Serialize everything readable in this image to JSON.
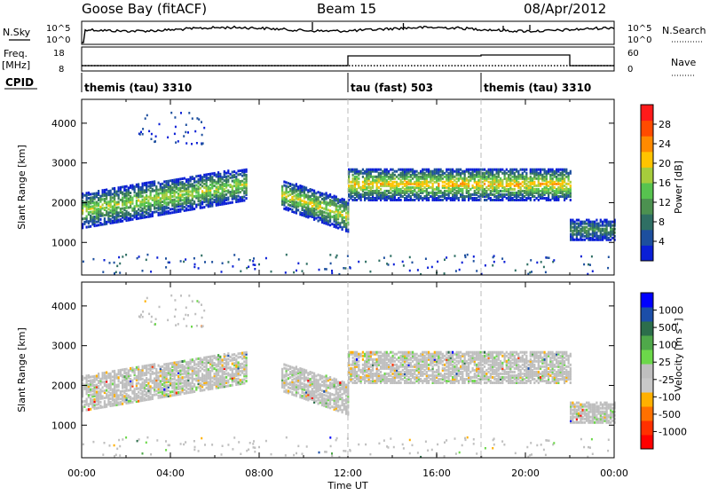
{
  "header": {
    "station": "Goose Bay (fitACF)",
    "beam": "Beam 15",
    "date": "08/Apr/2012"
  },
  "top_labels": {
    "nsky": "N.Sky",
    "freq": "Freq.",
    "mhz": "[MHz]",
    "cpid": "CPID",
    "nsearch": "N.Search",
    "nave": "Nave"
  },
  "noise_ticks": {
    "left_hi": "10^5",
    "left_lo": "10^0",
    "right_hi": "10^5",
    "right_lo": "10^0"
  },
  "freq_ticks": {
    "left_hi": "18",
    "left_lo": "8",
    "right_hi": "60",
    "right_lo": "0"
  },
  "cpid_segments": [
    {
      "label": "themis (tau) 3310",
      "start": 0,
      "end": 12
    },
    {
      "label": "tau (fast) 503",
      "start": 12,
      "end": 18
    },
    {
      "label": "themis (tau) 3310",
      "start": 18,
      "end": 24
    }
  ],
  "colors": {
    "trace": "#000000",
    "dashed_line": "#bbbbbb",
    "ground_scatter": "#bfbfbf",
    "power_scale": [
      "#0a1fd6",
      "#1d4f9e",
      "#2f6f64",
      "#4c9150",
      "#57c34f",
      "#a6cc3c",
      "#ffc400",
      "#ff8a00",
      "#ff4b00",
      "#ff1a1a"
    ],
    "velocity_scale": [
      "#0000ff",
      "#1b4ea8",
      "#2c6e4b",
      "#4fa84a",
      "#6cd84a",
      "#bfbfbf",
      "#c8c8c8",
      "#ffb000",
      "#ff7000",
      "#ff3000",
      "#ff0000"
    ]
  },
  "chart_data": [
    {
      "type": "heatmap",
      "title": "Power",
      "ylabel": "Slant Range [km]",
      "xlabel": "Time UT",
      "xlim": [
        0,
        24
      ],
      "ylim": [
        180,
        4600
      ],
      "x_tick_labels": [
        "00:00",
        "04:00",
        "08:00",
        "12:00",
        "16:00",
        "20:00",
        "00:00"
      ],
      "y_ticks": [
        1000,
        2000,
        3000,
        4000
      ],
      "colorbar": {
        "label": "Power [dB]",
        "ticks": [
          "4",
          "8",
          "12",
          "16",
          "20",
          "24",
          "28"
        ],
        "range": [
          0,
          30
        ]
      },
      "regions": [
        {
          "t_start": 0.0,
          "t_end": 7.4,
          "range_low": 1400,
          "range_high": 3000,
          "trend": "rising",
          "peak_power": 16
        },
        {
          "t_start": 9.0,
          "t_end": 12.0,
          "range_low": 1300,
          "range_high": 2600,
          "trend": "falling",
          "peak_power": 18
        },
        {
          "t_start": 12.0,
          "t_end": 22.0,
          "range_low": 2100,
          "range_high": 2900,
          "trend": "flat",
          "peak_power": 20
        },
        {
          "t_start": 22.0,
          "t_end": 24.0,
          "range_low": 1100,
          "range_high": 1600,
          "trend": "flat",
          "peak_power": 10
        }
      ]
    },
    {
      "type": "heatmap",
      "title": "Velocity",
      "ylabel": "Slant Range [km]",
      "xlabel": "Time UT",
      "xlim": [
        0,
        24
      ],
      "ylim": [
        180,
        4600
      ],
      "x_tick_labels": [
        "00:00",
        "04:00",
        "08:00",
        "12:00",
        "16:00",
        "20:00",
        "00:00"
      ],
      "y_ticks": [
        1000,
        2000,
        3000,
        4000
      ],
      "colorbar": {
        "label": "Velocity [m s-1]",
        "ticks": [
          "1000",
          "500",
          "100",
          "25",
          "-25",
          "-100",
          "-500",
          "-1000"
        ]
      },
      "dominant_class": "ground scatter (-25 to 25 m/s)"
    }
  ],
  "axis": {
    "xlabel": "Time UT",
    "ylabel": "Slant Range [km]",
    "x_ticks": [
      "00:00",
      "04:00",
      "08:00",
      "12:00",
      "16:00",
      "20:00",
      "00:00"
    ],
    "y_ticks": [
      "1000",
      "2000",
      "3000",
      "4000"
    ]
  },
  "colorbars": {
    "power": {
      "label_main": "Power [dB]",
      "ticks": [
        "4",
        "8",
        "12",
        "16",
        "20",
        "24",
        "28"
      ]
    },
    "velocity": {
      "label_main": "Velocity [m s",
      "label_sup": "-1",
      "label_end": "]",
      "ticks": [
        "1000",
        "500",
        "100",
        "25",
        "-25",
        "-100",
        "-500",
        "-1000"
      ]
    }
  }
}
